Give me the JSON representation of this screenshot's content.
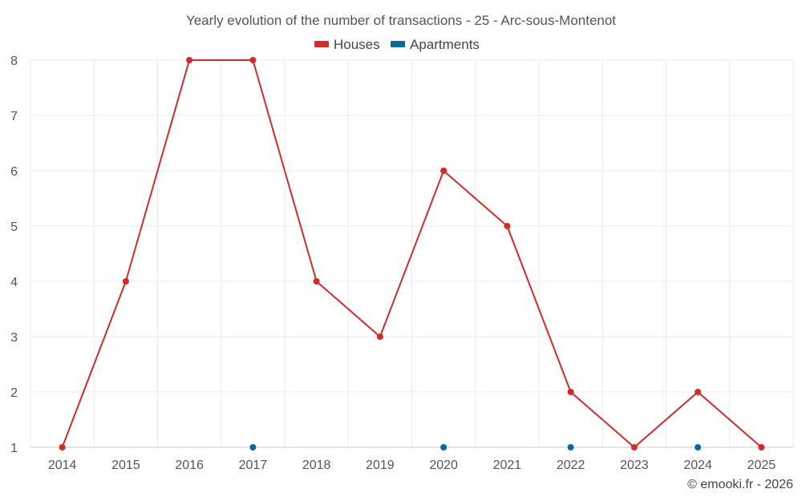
{
  "chart_data": {
    "type": "line",
    "title": "Yearly evolution of the number of transactions - 25 - Arc-sous-Montenot",
    "categories": [
      "2014",
      "2015",
      "2016",
      "2017",
      "2018",
      "2019",
      "2020",
      "2021",
      "2022",
      "2023",
      "2024",
      "2025"
    ],
    "ylim": [
      1,
      8
    ],
    "yticks": [
      1,
      2,
      3,
      4,
      5,
      6,
      7,
      8
    ],
    "grid": true,
    "legend_position": "top-center",
    "series": [
      {
        "name": "Houses",
        "color": "#d32a2a",
        "line": true,
        "values": [
          1,
          4,
          8,
          8,
          4,
          3,
          6,
          5,
          2,
          1,
          2,
          1
        ]
      },
      {
        "name": "Apartments",
        "color": "#0a6a9c",
        "line": false,
        "values": [
          null,
          null,
          null,
          1,
          null,
          null,
          1,
          null,
          1,
          null,
          1,
          null
        ]
      }
    ]
  },
  "footer": {
    "credit": "© emooki.fr - 2026"
  }
}
